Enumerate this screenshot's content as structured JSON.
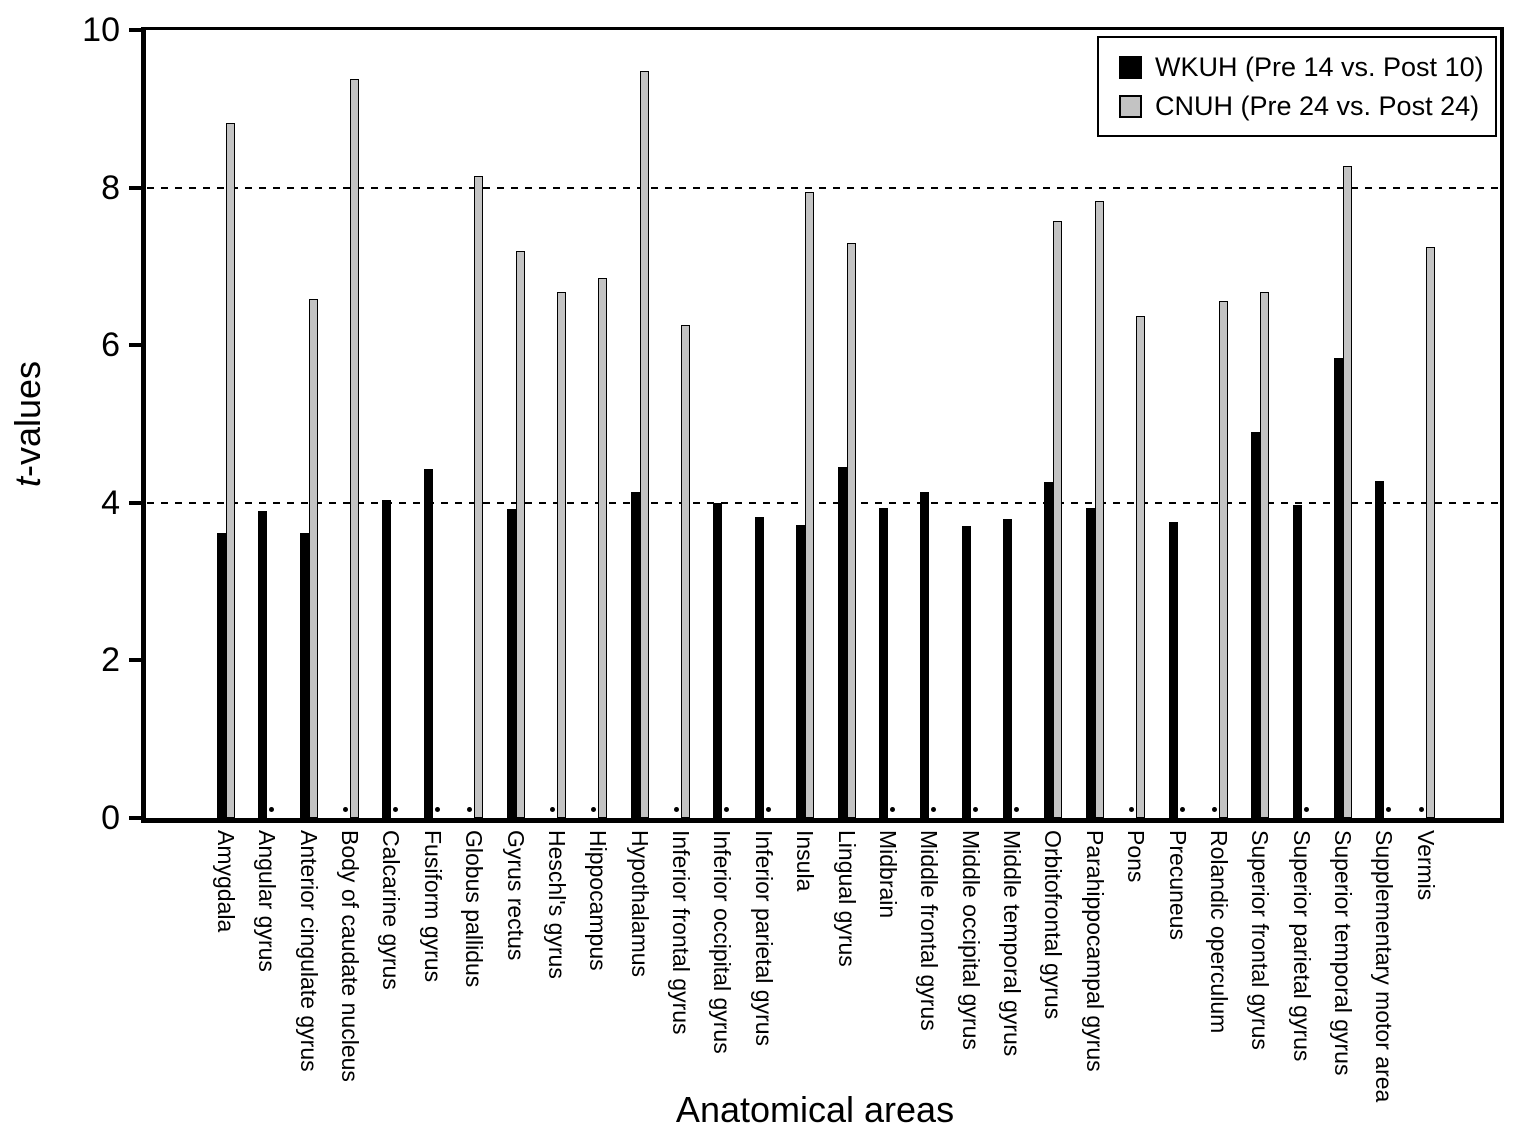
{
  "figure": {
    "ylabel_italic": "t",
    "ylabel_rest": "-values",
    "xlabel": "Anatomical areas"
  },
  "chart_data": {
    "type": "bar",
    "title": "",
    "xlabel": "Anatomical areas",
    "ylabel": "t-values",
    "ylim": [
      0,
      10
    ],
    "yticks": [
      0,
      2,
      4,
      6,
      8,
      10
    ],
    "gridlines_y": [
      4,
      8
    ],
    "grid": "horizontal dashed lines at y=4 and y=8",
    "legend_position": "top-right",
    "null_marker": "small dot at baseline where a bar is absent",
    "categories": [
      "Amygdala",
      "Angular gyrus",
      "Anterior cingulate gyrus",
      "Body of caudate nucleus",
      "Calcarine gyrus",
      "Fusiform gyrus",
      "Globus pallidus",
      "Gyrus rectus",
      "Heschl's gyrus",
      "Hippocampus",
      "Hypothalamus",
      "Inferior frontal gyrus",
      "Inferior occipital gyrus",
      "Inferior parietal gyrus",
      "Insula",
      "Lingual gyrus",
      "Midbrain",
      "Middle frontal gyrus",
      "Middle occipital gyrus",
      "Middle temporal gyrus",
      "Orbitofrontal gyrus",
      "Parahippocampal gyrus",
      "Pons",
      "Precuneus",
      "Rolandic operculum",
      "Superior frontal gyrus",
      "Superior parietal gyrus",
      "Superior temporal gyrus",
      "Supplementary motor area",
      "Vermis"
    ],
    "series": [
      {
        "name": "WKUH (Pre 14 vs. Post 10)",
        "color": "#000000",
        "values": [
          3.62,
          3.89,
          3.62,
          null,
          4.03,
          4.43,
          null,
          3.92,
          null,
          null,
          4.14,
          null,
          4.0,
          3.82,
          3.72,
          4.45,
          3.93,
          4.14,
          3.7,
          3.79,
          4.26,
          3.93,
          null,
          3.76,
          null,
          4.9,
          3.97,
          5.84,
          4.28,
          null
        ]
      },
      {
        "name": "CNUH  (Pre 24 vs. Post 24)",
        "color": "#c3c3c3",
        "values": [
          8.82,
          null,
          6.59,
          9.38,
          null,
          null,
          8.15,
          7.2,
          6.67,
          6.85,
          9.48,
          6.26,
          null,
          null,
          7.95,
          7.3,
          null,
          null,
          null,
          null,
          7.58,
          7.83,
          6.37,
          null,
          6.56,
          6.67,
          null,
          8.27,
          null,
          7.24
        ]
      }
    ]
  }
}
